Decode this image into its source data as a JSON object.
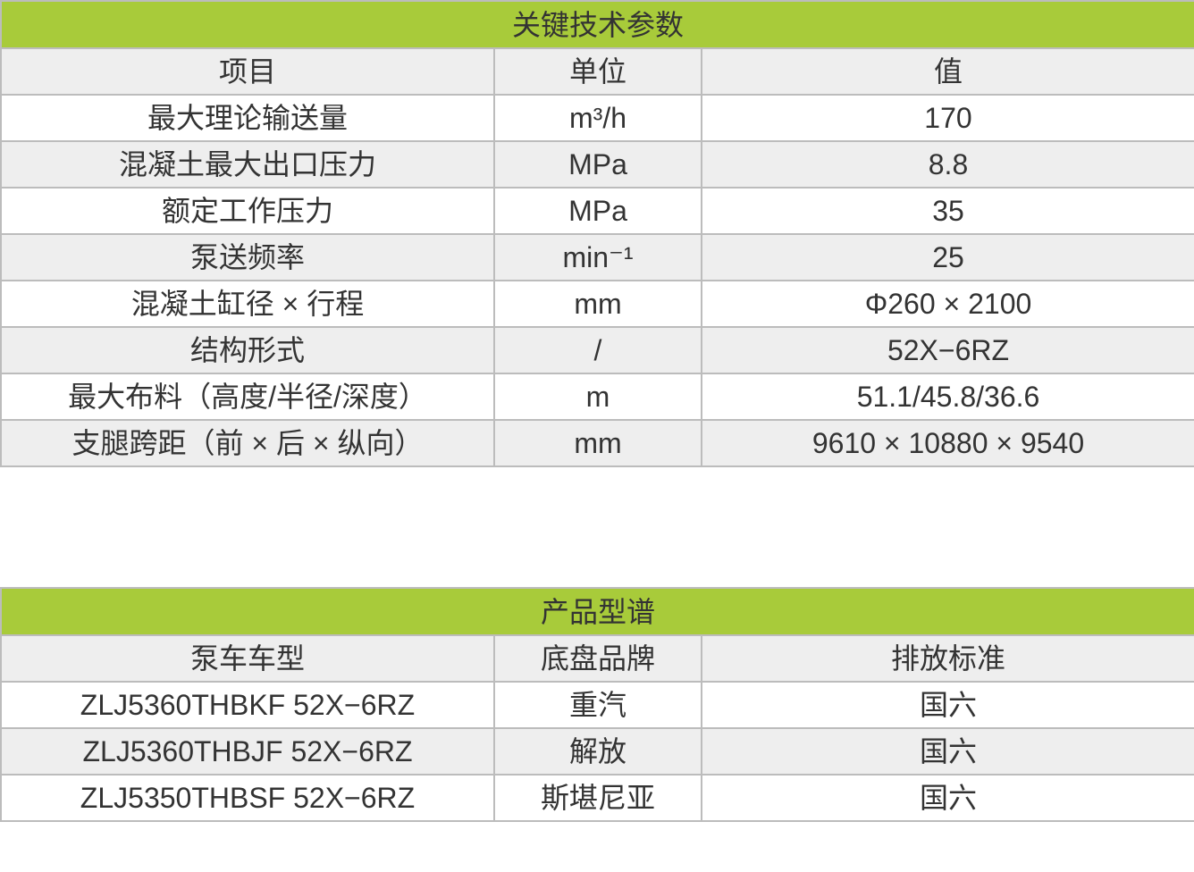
{
  "colors": {
    "header_green": "#a8cb3a",
    "row_gray": "#eeeeee",
    "border": "#bcbcbc",
    "text": "#333333"
  },
  "specs": {
    "title": "关键技术参数",
    "headers": [
      "项目",
      "单位",
      "值"
    ],
    "rows": [
      [
        "最大理论输送量",
        "m³/h",
        "170"
      ],
      [
        "混凝土最大出口压力",
        "MPa",
        "8.8"
      ],
      [
        "额定工作压力",
        "MPa",
        "35"
      ],
      [
        "泵送频率",
        "min⁻¹",
        "25"
      ],
      [
        "混凝土缸径 × 行程",
        "mm",
        "Φ260 × 2100"
      ],
      [
        "结构形式",
        "/",
        "52X−6RZ"
      ],
      [
        "最大布料（高度/半径/深度）",
        "m",
        "51.1/45.8/36.6"
      ],
      [
        "支腿跨距（前 × 后 × 纵向）",
        "mm",
        "9610 × 10880 × 9540"
      ]
    ]
  },
  "models": {
    "title": "产品型谱",
    "headers": [
      "泵车车型",
      "底盘品牌",
      "排放标准"
    ],
    "rows": [
      [
        "ZLJ5360THBKF 52X−6RZ",
        "重汽",
        "国六"
      ],
      [
        "ZLJ5360THBJF 52X−6RZ",
        "解放",
        "国六"
      ],
      [
        "ZLJ5350THBSF 52X−6RZ",
        "斯堪尼亚",
        "国六"
      ]
    ]
  }
}
